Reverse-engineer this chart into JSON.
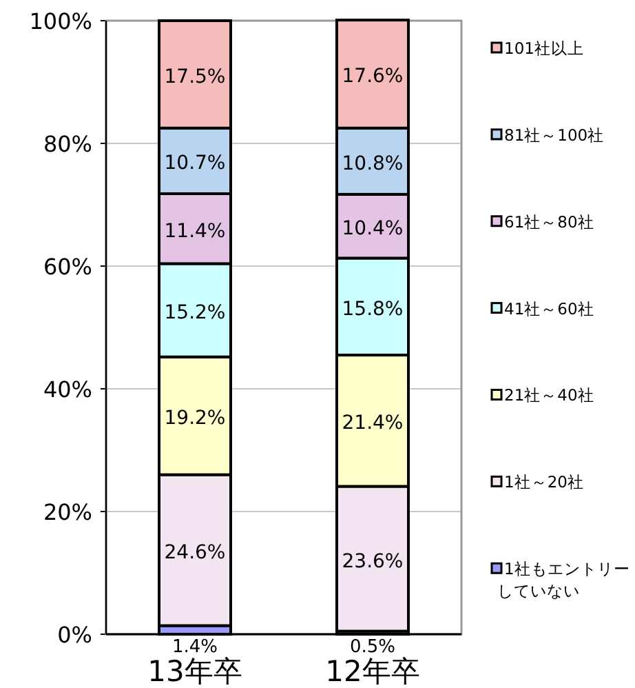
{
  "chart_data": {
    "type": "bar",
    "stacked": true,
    "categories": [
      "13年卒",
      "12年卒"
    ],
    "series": [
      {
        "name": "1社もエントリーしていない",
        "color": "#9999ff",
        "values": [
          1.4,
          0.5
        ],
        "value_labels": [
          "1.4%",
          "0.5%"
        ]
      },
      {
        "name": "1社～20社",
        "color": "#f2e4f0",
        "values": [
          24.6,
          23.6
        ],
        "value_labels": [
          "24.6%",
          "23.6%"
        ]
      },
      {
        "name": "21社～40社",
        "color": "#ffffcc",
        "values": [
          19.2,
          21.4
        ],
        "value_labels": [
          "19.2%",
          "21.4%"
        ]
      },
      {
        "name": "41社～60社",
        "color": "#ccffff",
        "values": [
          15.2,
          15.8
        ],
        "value_labels": [
          "15.2%",
          "15.8%"
        ]
      },
      {
        "name": "61社～80社",
        "color": "#e4c4e4",
        "values": [
          11.4,
          10.4
        ],
        "value_labels": [
          "11.4%",
          "10.4%"
        ]
      },
      {
        "name": "81社～100社",
        "color": "#b8d4f0",
        "values": [
          10.7,
          10.8
        ],
        "value_labels": [
          "10.7%",
          "10.8%"
        ]
      },
      {
        "name": "101社以上",
        "color": "#f6bcbc",
        "values": [
          17.5,
          17.6
        ],
        "value_labels": [
          "17.5%",
          "17.6%"
        ]
      }
    ],
    "ylim": [
      0,
      100
    ],
    "yticks": [
      {
        "value": 0,
        "label": "0%"
      },
      {
        "value": 20,
        "label": "20%"
      },
      {
        "value": 40,
        "label": "40%"
      },
      {
        "value": 60,
        "label": "60%"
      },
      {
        "value": 80,
        "label": "80%"
      },
      {
        "value": 100,
        "label": "100%"
      }
    ],
    "grid": "y",
    "legend": "right"
  }
}
